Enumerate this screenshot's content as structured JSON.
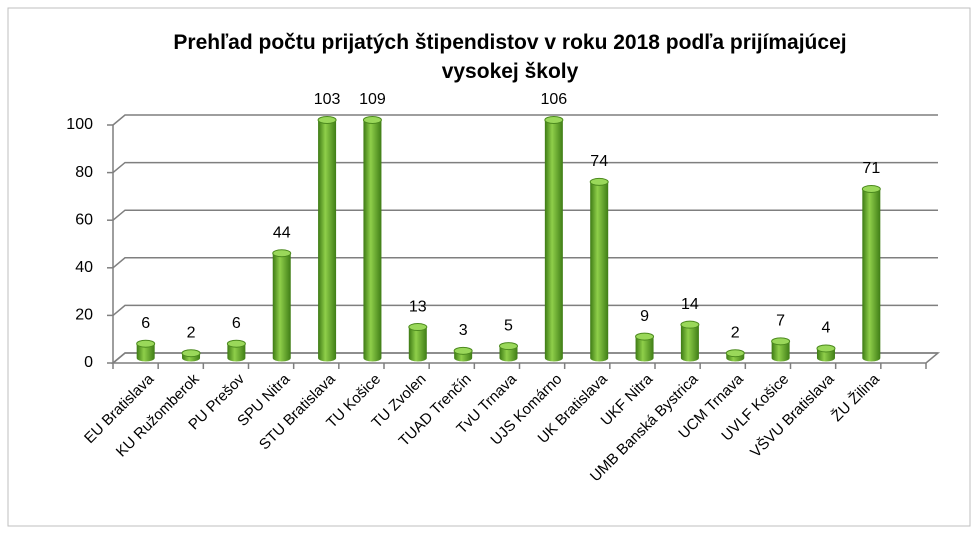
{
  "chart_data": {
    "type": "bar",
    "title": "Prehľad počtu prijatých štipendistov v roku 2018 podľa prijímajúcej vysokej školy",
    "categories": [
      "EU Bratislava",
      "KU Ružomberok",
      "PU Prešov",
      "SPU Nitra",
      "STU Bratislava",
      "TU Košice",
      "TU Zvolen",
      "TUAD Trenčín",
      "TvU Trnava",
      "UJS Komárno",
      "UK Bratislava",
      "UKF Nitra",
      "UMB Banská Bystrica",
      "UCM Trnava",
      "UVLF Košice",
      "VŠVU Bratislava",
      "ŽU Žilina"
    ],
    "values": [
      6,
      2,
      6,
      44,
      103,
      109,
      13,
      3,
      5,
      106,
      74,
      9,
      14,
      2,
      7,
      4,
      71
    ],
    "color": "#5e9e2a",
    "ylim": [
      0,
      100
    ],
    "yticks": [
      0,
      20,
      40,
      60,
      80,
      100
    ],
    "grid": true
  }
}
